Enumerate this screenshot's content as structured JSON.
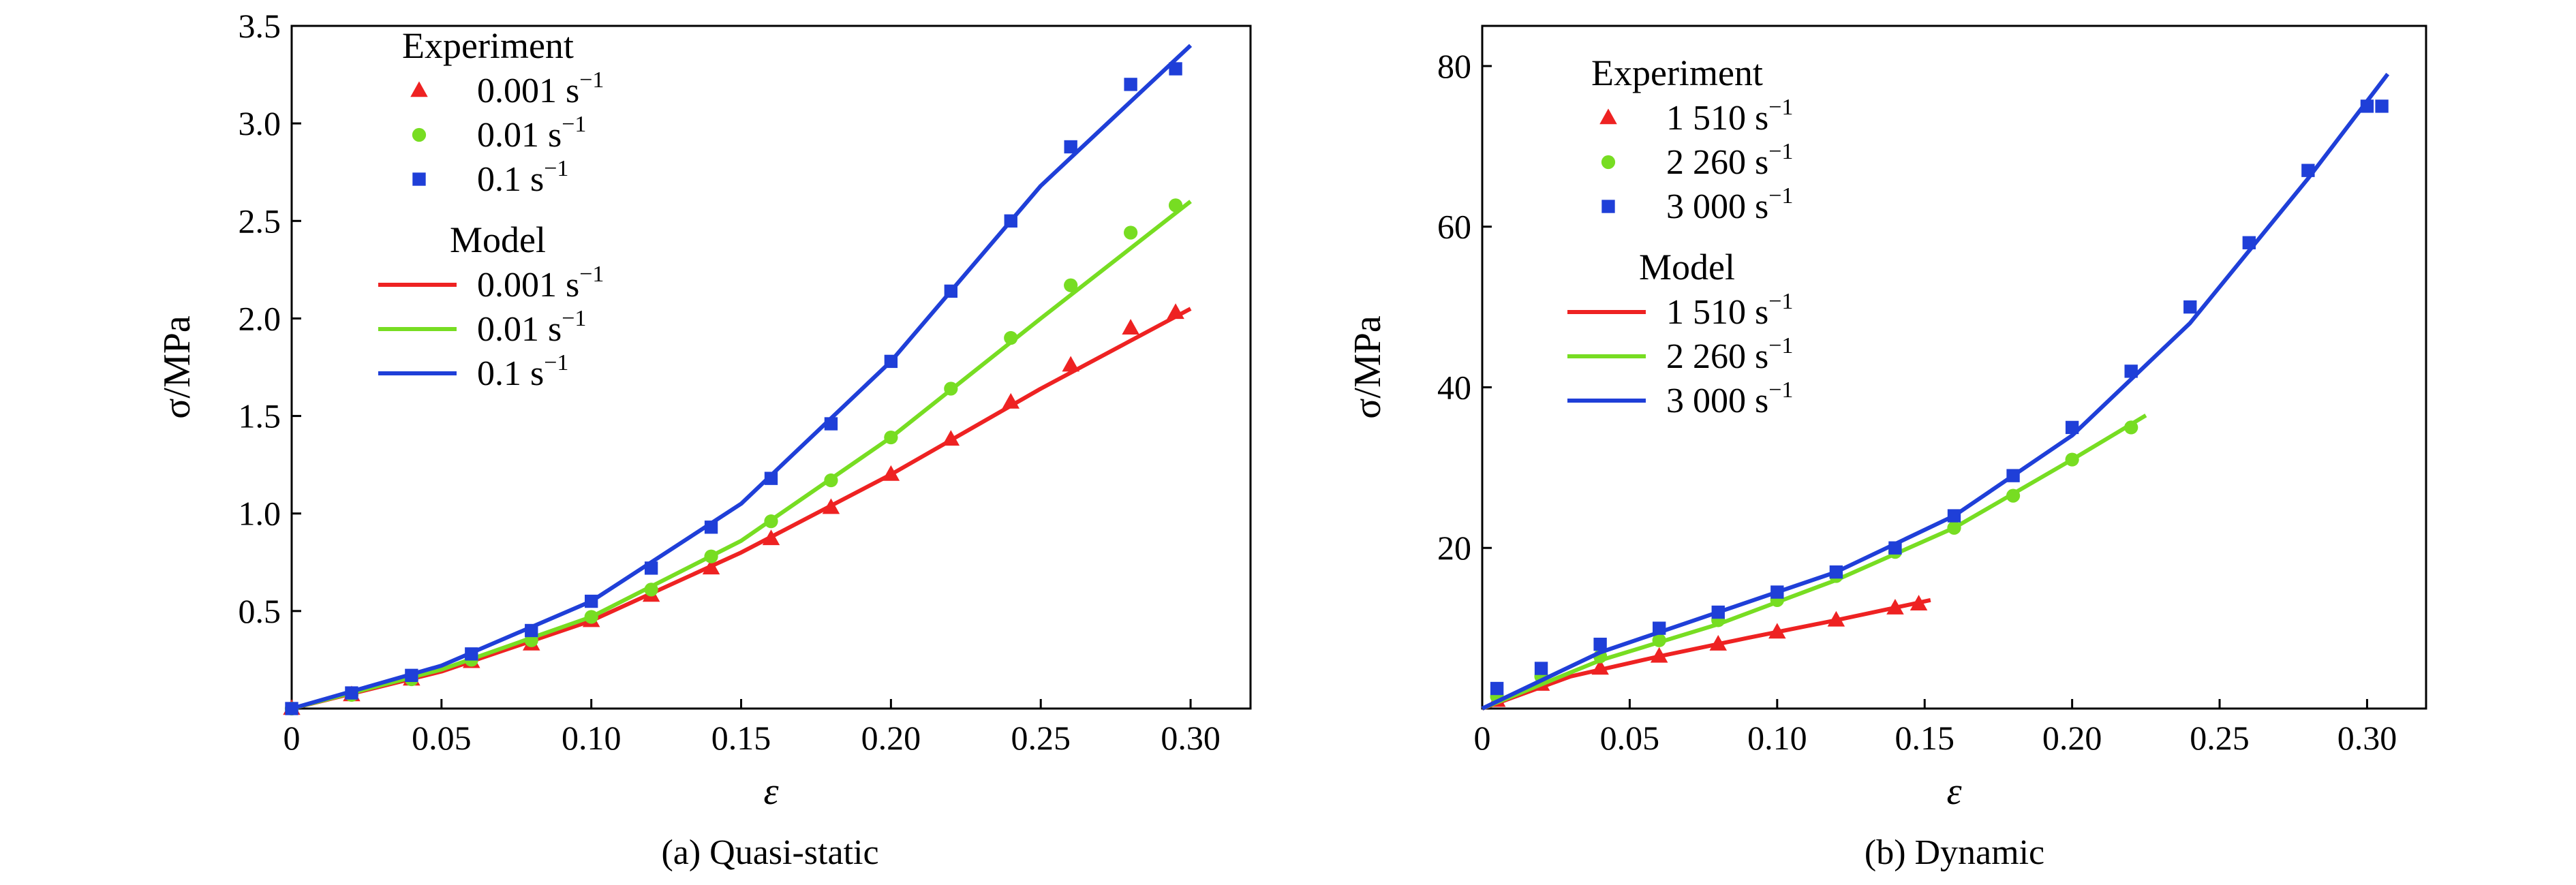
{
  "chart_data": [
    {
      "id": "a",
      "type": "line",
      "caption": "(a) Quasi-static",
      "xlabel": "ε",
      "ylabel": "σ/MPa",
      "xlim": [
        0,
        0.32
      ],
      "ylim": [
        0,
        3.5
      ],
      "x_ticks": [
        0,
        0.05,
        0.1,
        0.15,
        0.2,
        0.25,
        0.3
      ],
      "x_tick_labels": [
        "0",
        "0.05",
        "0.10",
        "0.15",
        "0.20",
        "0.25",
        "0.30"
      ],
      "y_ticks": [
        0.5,
        1.0,
        1.5,
        2.0,
        2.5,
        3.0,
        3.5
      ],
      "y_tick_labels": [
        "0.5",
        "1.0",
        "1.5",
        "2.0",
        "2.5",
        "3.0",
        "3.5"
      ],
      "legend": {
        "placement": "top-left",
        "experiment_title": "Experiment",
        "model_title": "Model"
      },
      "series": [
        {
          "name": "0.001 s",
          "superscript": "−1",
          "color": "#ee2222",
          "marker": "triangle",
          "experiment": {
            "x": [
              0.0,
              0.02,
              0.04,
              0.06,
              0.08,
              0.1,
              0.12,
              0.14,
              0.16,
              0.18,
              0.2,
              0.22,
              0.24,
              0.26,
              0.28,
              0.295
            ],
            "y": [
              0.0,
              0.07,
              0.15,
              0.24,
              0.33,
              0.45,
              0.58,
              0.72,
              0.87,
              1.03,
              1.2,
              1.38,
              1.57,
              1.76,
              1.95,
              2.03
            ]
          },
          "model": {
            "x": [
              0.0,
              0.05,
              0.1,
              0.15,
              0.2,
              0.25,
              0.3
            ],
            "y": [
              0.0,
              0.19,
              0.45,
              0.8,
              1.2,
              1.64,
              2.05
            ]
          }
        },
        {
          "name": "0.01 s",
          "superscript": "−1",
          "color": "#77dd22",
          "marker": "circle",
          "experiment": {
            "x": [
              0.0,
              0.02,
              0.04,
              0.06,
              0.08,
              0.1,
              0.12,
              0.14,
              0.16,
              0.18,
              0.2,
              0.22,
              0.24,
              0.26,
              0.28,
              0.295
            ],
            "y": [
              0.0,
              0.07,
              0.15,
              0.25,
              0.35,
              0.47,
              0.61,
              0.78,
              0.96,
              1.17,
              1.39,
              1.64,
              1.9,
              2.17,
              2.44,
              2.58
            ]
          },
          "model": {
            "x": [
              0.0,
              0.05,
              0.1,
              0.15,
              0.2,
              0.25,
              0.3
            ],
            "y": [
              0.0,
              0.2,
              0.47,
              0.86,
              1.39,
              2.0,
              2.6
            ]
          }
        },
        {
          "name": "0.1 s",
          "superscript": "−1",
          "color": "#1f3fd8",
          "marker": "square",
          "experiment": {
            "x": [
              0.0,
              0.02,
              0.04,
              0.06,
              0.08,
              0.1,
              0.12,
              0.14,
              0.16,
              0.18,
              0.2,
              0.22,
              0.24,
              0.26,
              0.28,
              0.295
            ],
            "y": [
              0.0,
              0.08,
              0.17,
              0.28,
              0.4,
              0.55,
              0.72,
              0.93,
              1.18,
              1.46,
              1.78,
              2.14,
              2.5,
              2.88,
              3.2,
              3.28
            ]
          },
          "model": {
            "x": [
              0.0,
              0.05,
              0.1,
              0.15,
              0.2,
              0.25,
              0.3
            ],
            "y": [
              0.0,
              0.22,
              0.55,
              1.05,
              1.78,
              2.68,
              3.4
            ]
          }
        }
      ]
    },
    {
      "id": "b",
      "type": "line",
      "caption": "(b) Dynamic",
      "xlabel": "ε",
      "ylabel": "σ/MPa",
      "xlim": [
        0,
        0.32
      ],
      "ylim": [
        0,
        85
      ],
      "x_ticks": [
        0,
        0.05,
        0.1,
        0.15,
        0.2,
        0.25,
        0.3
      ],
      "x_tick_labels": [
        "0",
        "0.05",
        "0.10",
        "0.15",
        "0.20",
        "0.25",
        "0.30"
      ],
      "y_ticks": [
        20,
        40,
        60,
        80
      ],
      "y_tick_labels": [
        "20",
        "40",
        "60",
        "80"
      ],
      "legend": {
        "placement": "top-left",
        "experiment_title": "Experiment",
        "model_title": "Model"
      },
      "series": [
        {
          "name": "1 510 s",
          "superscript": "−1",
          "color": "#ee2222",
          "marker": "triangle",
          "experiment": {
            "x": [
              0.005,
              0.02,
              0.04,
              0.06,
              0.08,
              0.1,
              0.12,
              0.14,
              0.148
            ],
            "y": [
              1.0,
              3.0,
              5.0,
              6.5,
              8.0,
              9.5,
              11.0,
              12.5,
              13.0
            ]
          },
          "model": {
            "x": [
              0.0,
              0.03,
              0.06,
              0.09,
              0.12,
              0.152
            ],
            "y": [
              0.0,
              4.0,
              6.5,
              8.8,
              11.0,
              13.5
            ]
          }
        },
        {
          "name": "2 260 s",
          "superscript": "−1",
          "color": "#77dd22",
          "marker": "circle",
          "experiment": {
            "x": [
              0.005,
              0.02,
              0.04,
              0.06,
              0.08,
              0.1,
              0.12,
              0.14,
              0.16,
              0.18,
              0.2,
              0.22
            ],
            "y": [
              1.5,
              4.0,
              6.5,
              8.5,
              11.0,
              13.5,
              16.5,
              19.5,
              22.5,
              26.5,
              31.0,
              35.0
            ]
          },
          "model": {
            "x": [
              0.0,
              0.04,
              0.08,
              0.12,
              0.16,
              0.2,
              0.225
            ],
            "y": [
              0.0,
              6.0,
              10.5,
              16.0,
              22.5,
              31.0,
              36.5
            ]
          }
        },
        {
          "name": "3 000 s",
          "superscript": "−1",
          "color": "#1f3fd8",
          "marker": "square",
          "experiment": {
            "x": [
              0.005,
              0.02,
              0.04,
              0.06,
              0.08,
              0.1,
              0.12,
              0.14,
              0.16,
              0.18,
              0.2,
              0.22,
              0.24,
              0.26,
              0.28,
              0.3,
              0.305
            ],
            "y": [
              2.5,
              5.0,
              8.0,
              10.0,
              12.0,
              14.5,
              17.0,
              20.0,
              24.0,
              29.0,
              35.0,
              42.0,
              50.0,
              58.0,
              67.0,
              75.0,
              75.0
            ]
          },
          "model": {
            "x": [
              0.0,
              0.04,
              0.08,
              0.12,
              0.16,
              0.2,
              0.24,
              0.28,
              0.307
            ],
            "y": [
              0.0,
              7.0,
              12.0,
              17.0,
              24.0,
              34.0,
              48.0,
              66.0,
              79.0
            ]
          }
        }
      ]
    }
  ]
}
